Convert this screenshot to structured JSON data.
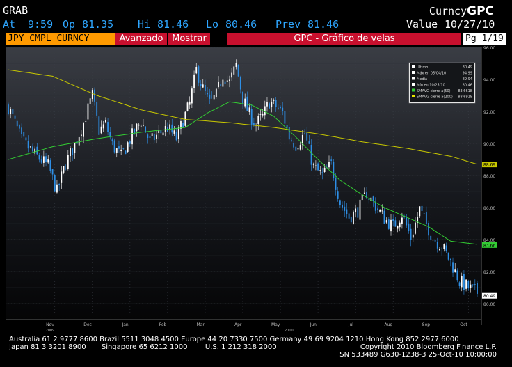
{
  "header": {
    "ticker": "GRAB",
    "brand_prefix": "Curncy",
    "brand": "GPC",
    "at_label": "At",
    "at_value": "9:59",
    "op_label": "Op",
    "op_value": "81.35",
    "hi_label": "Hi",
    "hi_value": "81.46",
    "lo_label": "Lo",
    "lo_value": "80.46",
    "prev_label": "Prev",
    "prev_value": "81.46",
    "value_label": "Value",
    "value_date": "10/27/10"
  },
  "toolbar": {
    "security": "JPY CMPL CURNCY",
    "advanced_button": "Avanzado",
    "show_button": "Mostrar",
    "chart_title": "GPC - Gráfico de velas",
    "page": "Pg 1/19"
  },
  "legend": {
    "items": [
      {
        "label": "Último",
        "value": "80.49",
        "color": "#ffffff"
      },
      {
        "label": "Máx en 05/04/10",
        "value": "94.99",
        "color": "#ffffff"
      },
      {
        "label": "Media",
        "value": "89.94",
        "color": "#ffffff"
      },
      {
        "label": "Mín en 10/25/10",
        "value": "80.46",
        "color": "#ffffff"
      },
      {
        "label": "SMAVG cierre a(50)",
        "value": "83.6618",
        "color": "#33cc33"
      },
      {
        "label": "SMAVG cierre a(200)",
        "value": "88.6918",
        "color": "#e6e600"
      }
    ]
  },
  "chart_data": {
    "type": "candlestick",
    "ylim": [
      79,
      96
    ],
    "y_ticks": [
      "96.00",
      "94.00",
      "92.00",
      "90.00",
      "88.00",
      "86.00",
      "84.00",
      "82.00",
      "80.00"
    ],
    "last_tag": "80.49",
    "sma50_tag": "83.66",
    "sma200_tag": "88.69",
    "x_labels": [
      "Nov",
      "Dec",
      "Jan",
      "Feb",
      "Mar",
      "Apr",
      "May",
      "Jun",
      "Jul",
      "Aug",
      "Sep",
      "Oct"
    ],
    "year_labels": [
      "2009",
      "2010"
    ],
    "grid": true,
    "legend_position": "top-right",
    "colors": {
      "up": "#ffffff",
      "down": "#2e8fe6",
      "sma50": "#33cc33",
      "sma200": "#c8c800"
    },
    "close_path_points": [
      [
        0,
        92.3
      ],
      [
        6,
        90.2
      ],
      [
        12,
        89.3
      ],
      [
        18,
        88.6
      ],
      [
        22,
        87.0
      ],
      [
        26,
        88.8
      ],
      [
        30,
        89.9
      ],
      [
        34,
        91.3
      ],
      [
        38,
        93.0
      ],
      [
        41,
        90.8
      ],
      [
        44,
        91.2
      ],
      [
        47,
        89.9
      ],
      [
        51,
        89.2
      ],
      [
        56,
        90.5
      ],
      [
        60,
        91.4
      ],
      [
        64,
        90.1
      ],
      [
        68,
        90.6
      ],
      [
        72,
        91.0
      ],
      [
        76,
        90.3
      ],
      [
        80,
        91.8
      ],
      [
        82,
        92.5
      ],
      [
        85,
        94.6
      ],
      [
        88,
        93.4
      ],
      [
        91,
        92.5
      ],
      [
        94,
        93.0
      ],
      [
        97,
        94.3
      ],
      [
        100,
        93.8
      ],
      [
        103,
        94.9
      ],
      [
        106,
        92.8
      ],
      [
        109,
        91.8
      ],
      [
        112,
        91.2
      ],
      [
        115,
        91.7
      ],
      [
        118,
        92.6
      ],
      [
        121,
        92.3
      ],
      [
        124,
        91.9
      ],
      [
        127,
        90.4
      ],
      [
        130,
        89.9
      ],
      [
        134,
        90.6
      ],
      [
        138,
        88.5
      ],
      [
        142,
        88.0
      ],
      [
        146,
        88.7
      ],
      [
        150,
        86.3
      ],
      [
        154,
        85.4
      ],
      [
        158,
        85.8
      ],
      [
        162,
        86.9
      ],
      [
        166,
        86.1
      ],
      [
        170,
        85.3
      ],
      [
        174,
        84.8
      ],
      [
        178,
        85.6
      ],
      [
        182,
        84.1
      ],
      [
        186,
        85.9
      ],
      [
        188,
        85.2
      ],
      [
        192,
        84.1
      ],
      [
        196,
        83.6
      ],
      [
        200,
        82.6
      ],
      [
        204,
        81.4
      ],
      [
        208,
        81.0
      ],
      [
        212,
        80.7
      ]
    ],
    "sma50_points": [
      [
        0,
        89.0
      ],
      [
        20,
        89.8
      ],
      [
        40,
        90.3
      ],
      [
        60,
        90.7
      ],
      [
        80,
        91.0
      ],
      [
        90,
        91.9
      ],
      [
        100,
        92.6
      ],
      [
        110,
        92.4
      ],
      [
        120,
        91.7
      ],
      [
        130,
        90.4
      ],
      [
        140,
        89.0
      ],
      [
        150,
        87.7
      ],
      [
        160,
        86.8
      ],
      [
        170,
        86.0
      ],
      [
        180,
        85.4
      ],
      [
        190,
        84.8
      ],
      [
        200,
        83.9
      ],
      [
        212,
        83.7
      ]
    ],
    "sma200_points": [
      [
        0,
        94.6
      ],
      [
        20,
        94.2
      ],
      [
        40,
        93.0
      ],
      [
        60,
        92.1
      ],
      [
        80,
        91.5
      ],
      [
        100,
        91.3
      ],
      [
        120,
        91.0
      ],
      [
        140,
        90.6
      ],
      [
        160,
        90.1
      ],
      [
        180,
        89.7
      ],
      [
        200,
        89.2
      ],
      [
        212,
        88.7
      ]
    ]
  },
  "footer": {
    "line1_left": "Australia 61 2 9777 8600 Brazil 5511 3048 4500 Europe 44 20 7330 7500 Germany 49 69 9204 1210 Hong Kong 852 2977 6000",
    "line2_left": "Japan 81 3 3201 8900       Singapore 65 6212 1000        U.S. 1 212 318 2000",
    "line2_right": "Copyright 2010 Bloomberg Finance L.P.",
    "line3_right": "SN 533489 G630-1238-3 25-Oct-10 10:00:00"
  }
}
